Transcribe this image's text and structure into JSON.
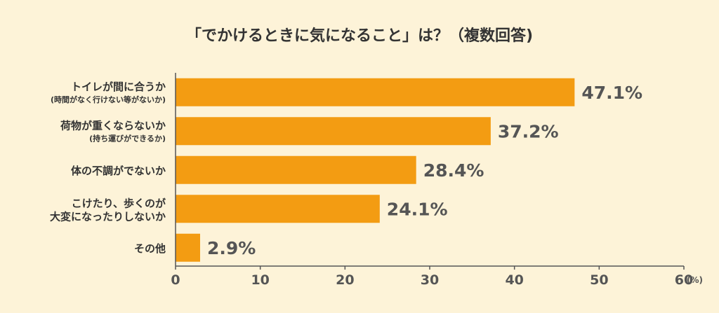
{
  "chart_data": {
    "type": "bar",
    "orientation": "horizontal",
    "title": "「でかけるときに気になること」は？（複数回答)",
    "categories": [
      {
        "main": "トイレが間に合うか",
        "sub": "(時間がなく行けない等がないか)"
      },
      {
        "main": "荷物が重くならないか",
        "sub": "(持ち運びができるか)"
      },
      {
        "main": "体の不調がでないか",
        "sub": ""
      },
      {
        "main": "こけたり、歩くのが",
        "sub": "大変になったりしないか"
      },
      {
        "main": "その他",
        "sub": ""
      }
    ],
    "values": [
      47.1,
      37.2,
      28.4,
      24.1,
      2.9
    ],
    "value_labels": [
      "47.1%",
      "37.2%",
      "28.4%",
      "24.1%",
      "2.9%"
    ],
    "xlim": [
      0,
      60
    ],
    "xticks": [
      "0",
      "10",
      "20",
      "30",
      "40",
      "50",
      "60"
    ],
    "unit_label": "(%)",
    "grid": false,
    "colors": {
      "bar": "#f39c12",
      "background": "#fdf3d8",
      "axis": "#555555"
    }
  }
}
